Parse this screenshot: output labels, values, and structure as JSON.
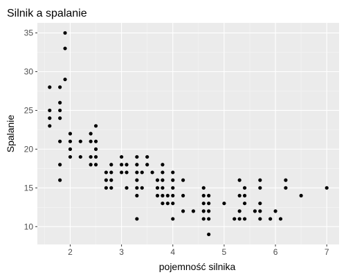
{
  "chart_data": {
    "type": "scatter",
    "title": "Silnik a spalanie",
    "xlabel": "pojemność silnika",
    "ylabel": "Spalanie",
    "xlim": [
      1.36,
      7.24
    ],
    "ylim": [
      7.7,
      36.3
    ],
    "xticks": [
      2,
      3,
      4,
      5,
      6,
      7
    ],
    "yticks": [
      10,
      15,
      20,
      25,
      30,
      35
    ],
    "grid": true,
    "legend": "none",
    "colors": {
      "panel": "#ebebeb",
      "grid_major": "#ffffff",
      "grid_minor": "#f5f5f5",
      "point": "#000000"
    },
    "points": [
      {
        "x": 1.6,
        "y": 28
      },
      {
        "x": 1.6,
        "y": 25
      },
      {
        "x": 1.6,
        "y": 24
      },
      {
        "x": 1.6,
        "y": 23
      },
      {
        "x": 1.8,
        "y": 28
      },
      {
        "x": 1.8,
        "y": 26
      },
      {
        "x": 1.8,
        "y": 25
      },
      {
        "x": 1.8,
        "y": 24
      },
      {
        "x": 1.8,
        "y": 21
      },
      {
        "x": 1.8,
        "y": 18
      },
      {
        "x": 1.8,
        "y": 16
      },
      {
        "x": 1.9,
        "y": 35
      },
      {
        "x": 1.9,
        "y": 33
      },
      {
        "x": 1.9,
        "y": 29
      },
      {
        "x": 2.0,
        "y": 22
      },
      {
        "x": 2.0,
        "y": 21
      },
      {
        "x": 2.0,
        "y": 20
      },
      {
        "x": 2.0,
        "y": 19
      },
      {
        "x": 2.2,
        "y": 21
      },
      {
        "x": 2.2,
        "y": 19
      },
      {
        "x": 2.4,
        "y": 22
      },
      {
        "x": 2.4,
        "y": 21
      },
      {
        "x": 2.4,
        "y": 19
      },
      {
        "x": 2.4,
        "y": 18
      },
      {
        "x": 2.5,
        "y": 23
      },
      {
        "x": 2.5,
        "y": 21
      },
      {
        "x": 2.5,
        "y": 20
      },
      {
        "x": 2.5,
        "y": 19
      },
      {
        "x": 2.5,
        "y": 18
      },
      {
        "x": 2.7,
        "y": 17
      },
      {
        "x": 2.7,
        "y": 16
      },
      {
        "x": 2.7,
        "y": 15
      },
      {
        "x": 2.8,
        "y": 18
      },
      {
        "x": 2.8,
        "y": 17
      },
      {
        "x": 2.8,
        "y": 16
      },
      {
        "x": 2.8,
        "y": 15
      },
      {
        "x": 3.0,
        "y": 19
      },
      {
        "x": 3.0,
        "y": 18
      },
      {
        "x": 3.0,
        "y": 17
      },
      {
        "x": 3.1,
        "y": 18
      },
      {
        "x": 3.1,
        "y": 17
      },
      {
        "x": 3.1,
        "y": 15
      },
      {
        "x": 3.3,
        "y": 19
      },
      {
        "x": 3.3,
        "y": 18
      },
      {
        "x": 3.3,
        "y": 17
      },
      {
        "x": 3.3,
        "y": 16
      },
      {
        "x": 3.3,
        "y": 15
      },
      {
        "x": 3.3,
        "y": 14
      },
      {
        "x": 3.3,
        "y": 11
      },
      {
        "x": 3.4,
        "y": 17
      },
      {
        "x": 3.4,
        "y": 15
      },
      {
        "x": 3.5,
        "y": 19
      },
      {
        "x": 3.5,
        "y": 18
      },
      {
        "x": 3.6,
        "y": 17
      },
      {
        "x": 3.7,
        "y": 16
      },
      {
        "x": 3.7,
        "y": 15
      },
      {
        "x": 3.7,
        "y": 14
      },
      {
        "x": 3.8,
        "y": 18
      },
      {
        "x": 3.8,
        "y": 17
      },
      {
        "x": 3.8,
        "y": 16
      },
      {
        "x": 3.8,
        "y": 15
      },
      {
        "x": 3.8,
        "y": 14
      },
      {
        "x": 3.8,
        "y": 13
      },
      {
        "x": 3.9,
        "y": 14
      },
      {
        "x": 3.9,
        "y": 13
      },
      {
        "x": 4.0,
        "y": 17
      },
      {
        "x": 4.0,
        "y": 16
      },
      {
        "x": 4.0,
        "y": 15
      },
      {
        "x": 4.0,
        "y": 14
      },
      {
        "x": 4.0,
        "y": 13
      },
      {
        "x": 4.0,
        "y": 11
      },
      {
        "x": 4.2,
        "y": 16
      },
      {
        "x": 4.2,
        "y": 14
      },
      {
        "x": 4.2,
        "y": 12
      },
      {
        "x": 4.4,
        "y": 12
      },
      {
        "x": 4.6,
        "y": 15
      },
      {
        "x": 4.6,
        "y": 14
      },
      {
        "x": 4.6,
        "y": 13
      },
      {
        "x": 4.6,
        "y": 12
      },
      {
        "x": 4.6,
        "y": 11
      },
      {
        "x": 4.7,
        "y": 14
      },
      {
        "x": 4.7,
        "y": 13
      },
      {
        "x": 4.7,
        "y": 12
      },
      {
        "x": 4.7,
        "y": 11
      },
      {
        "x": 4.7,
        "y": 9
      },
      {
        "x": 5.0,
        "y": 13
      },
      {
        "x": 5.2,
        "y": 11
      },
      {
        "x": 5.3,
        "y": 16
      },
      {
        "x": 5.3,
        "y": 14
      },
      {
        "x": 5.3,
        "y": 12
      },
      {
        "x": 5.3,
        "y": 11
      },
      {
        "x": 5.4,
        "y": 15
      },
      {
        "x": 5.4,
        "y": 14
      },
      {
        "x": 5.4,
        "y": 13
      },
      {
        "x": 5.4,
        "y": 11
      },
      {
        "x": 5.6,
        "y": 12
      },
      {
        "x": 5.7,
        "y": 16
      },
      {
        "x": 5.7,
        "y": 15
      },
      {
        "x": 5.7,
        "y": 13
      },
      {
        "x": 5.7,
        "y": 12
      },
      {
        "x": 5.7,
        "y": 11
      },
      {
        "x": 5.9,
        "y": 11
      },
      {
        "x": 6.0,
        "y": 12
      },
      {
        "x": 6.1,
        "y": 11
      },
      {
        "x": 6.2,
        "y": 16
      },
      {
        "x": 6.2,
        "y": 15
      },
      {
        "x": 6.5,
        "y": 14
      },
      {
        "x": 7.0,
        "y": 15
      }
    ]
  }
}
